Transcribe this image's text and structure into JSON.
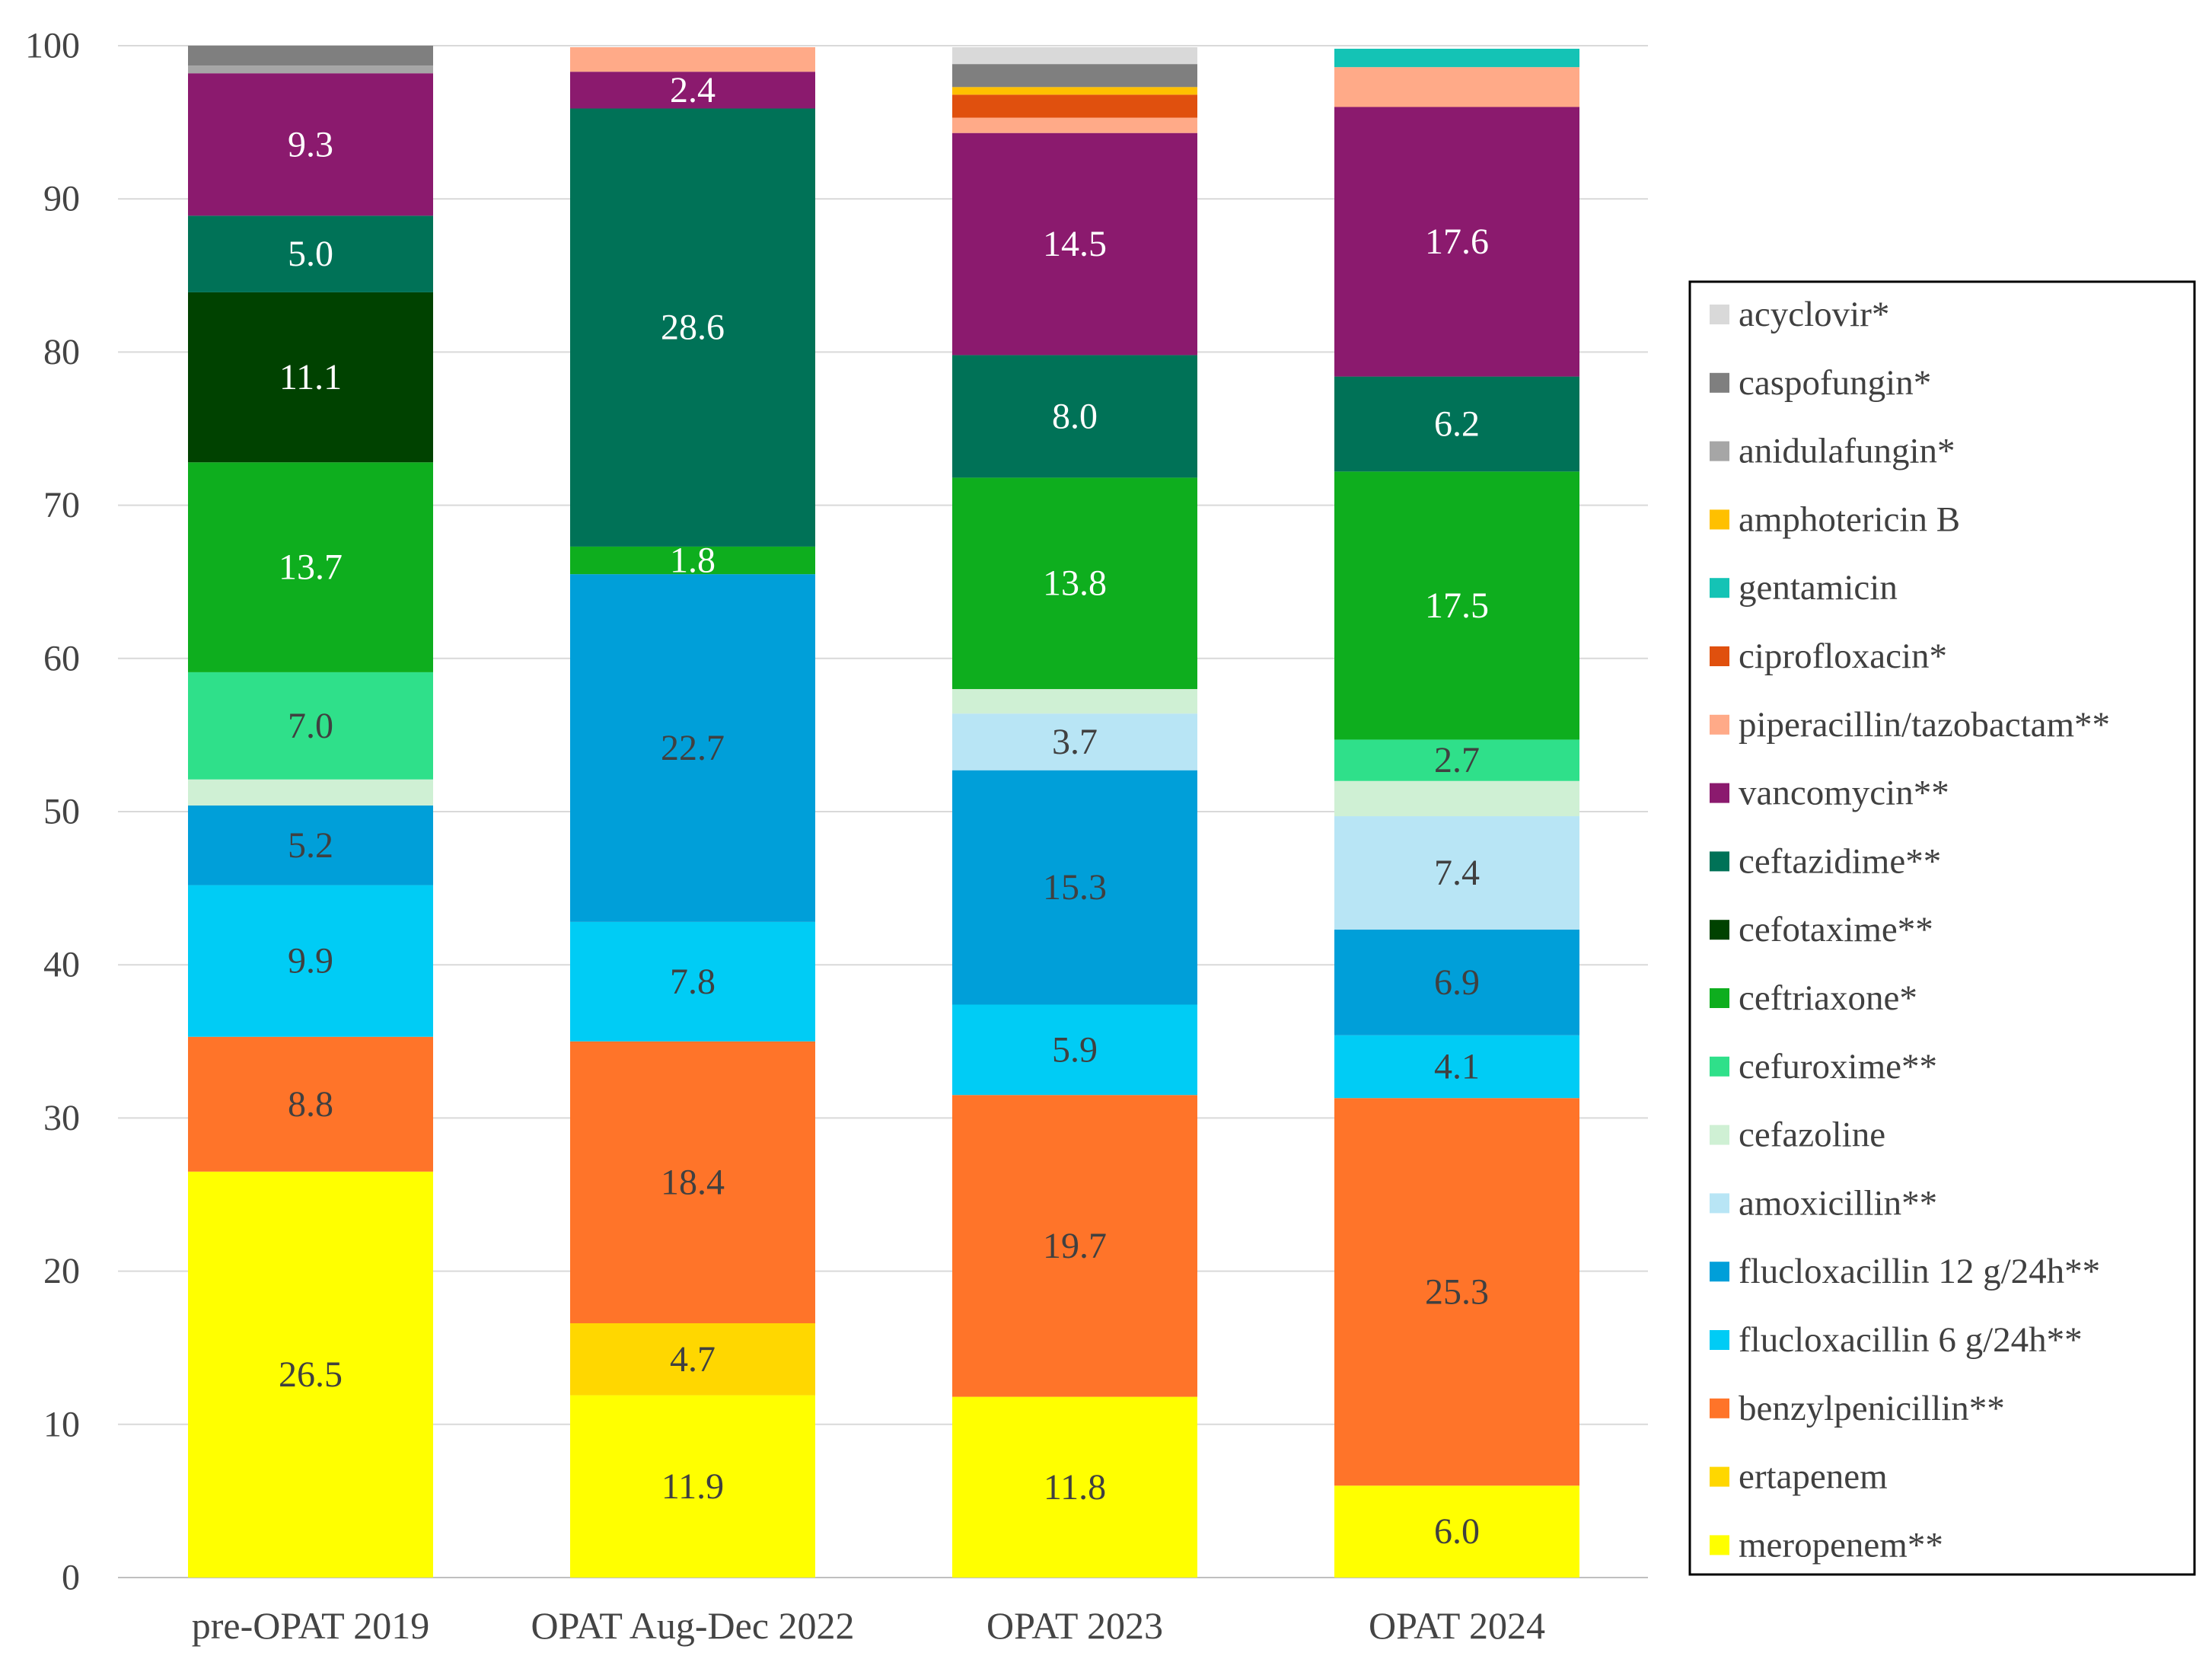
{
  "chart_data": {
    "type": "bar",
    "stacked": true,
    "title": "",
    "xlabel": "",
    "ylabel": "",
    "ylim": [
      0,
      100
    ],
    "yticks": [
      0,
      10,
      20,
      30,
      40,
      50,
      60,
      70,
      80,
      90,
      100
    ],
    "grid": true,
    "legend_position": "right",
    "categories": [
      "pre-OPAT 2019",
      "OPAT Aug-Dec 2022",
      "OPAT 2023",
      "OPAT 2024"
    ],
    "series": [
      {
        "name": "meropenem**",
        "color": "#FFFF00",
        "label_color": "#404040",
        "values": [
          26.5,
          11.9,
          11.8,
          6.0
        ],
        "labels": [
          "26.5",
          "11.9",
          "11.8",
          "6.0"
        ]
      },
      {
        "name": "ertapenem",
        "color": "#FFD700",
        "label_color": "#404040",
        "values": [
          0,
          4.7,
          0,
          0
        ],
        "labels": [
          "",
          "4.7",
          "",
          ""
        ]
      },
      {
        "name": "benzylpenicillin**",
        "color": "#FF7429",
        "label_color": "#404040",
        "values": [
          8.8,
          18.4,
          19.7,
          25.3
        ],
        "labels": [
          "8.8",
          "18.4",
          "19.7",
          "25.3"
        ]
      },
      {
        "name": "flucloxacillin 6 g/24h**",
        "color": "#00CCF5",
        "label_color": "#404040",
        "values": [
          9.9,
          7.8,
          5.9,
          4.1
        ],
        "labels": [
          "9.9",
          "7.8",
          "5.9",
          "4.1"
        ]
      },
      {
        "name": "flucloxacillin 12 g/24h**",
        "color": "#009FD9",
        "label_color": "#404040",
        "values": [
          5.2,
          22.7,
          15.3,
          6.9
        ],
        "labels": [
          "5.2",
          "22.7",
          "15.3",
          "6.9"
        ]
      },
      {
        "name": "amoxicillin**",
        "color": "#B8E5F5",
        "label_color": "#404040",
        "values": [
          0,
          0,
          3.7,
          7.4
        ],
        "labels": [
          "",
          "",
          "3.7",
          "7.4"
        ]
      },
      {
        "name": "cefazoline",
        "color": "#CFF0D4",
        "label_color": "#404040",
        "values": [
          1.7,
          0,
          1.6,
          2.3
        ],
        "labels": [
          "",
          "",
          "",
          ""
        ]
      },
      {
        "name": "cefuroxime**",
        "color": "#2FE08A",
        "label_color": "#404040",
        "values": [
          7.0,
          0,
          0,
          2.7
        ],
        "labels": [
          "7.0",
          "",
          "",
          "2.7"
        ]
      },
      {
        "name": "ceftriaxone*",
        "color": "#0EAE1E",
        "label_color": "#FFFFFF",
        "values": [
          13.7,
          1.8,
          13.8,
          17.5
        ],
        "labels": [
          "13.7",
          "1.8",
          "13.8",
          "17.5"
        ]
      },
      {
        "name": "cefotaxime**",
        "color": "#004200",
        "label_color": "#FFFFFF",
        "values": [
          11.1,
          0,
          0,
          0
        ],
        "labels": [
          "11.1",
          "",
          "",
          ""
        ]
      },
      {
        "name": "ceftazidime**",
        "color": "#007257",
        "label_color": "#FFFFFF",
        "values": [
          5.0,
          28.6,
          8.0,
          6.2
        ],
        "labels": [
          "5.0",
          "28.6",
          "8.0",
          "6.2"
        ]
      },
      {
        "name": "vancomycin**",
        "color": "#8B1A6E",
        "label_color": "#FFFFFF",
        "values": [
          9.3,
          2.4,
          14.5,
          17.6
        ],
        "labels": [
          "9.3",
          "2.4",
          "14.5",
          "17.6"
        ]
      },
      {
        "name": "piperacillin/tazobactam**",
        "color": "#FFAA88",
        "label_color": "#404040",
        "values": [
          0,
          1.6,
          1.0,
          2.6
        ],
        "labels": [
          "",
          "",
          "",
          ""
        ]
      },
      {
        "name": "ciprofloxacin*",
        "color": "#E0500E",
        "label_color": "#FFFFFF",
        "values": [
          0,
          0,
          1.5,
          0
        ],
        "labels": [
          "",
          "",
          "",
          ""
        ]
      },
      {
        "name": "gentamicin",
        "color": "#14C3B5",
        "label_color": "#404040",
        "values": [
          0,
          0,
          0,
          1.2
        ],
        "labels": [
          "",
          "",
          "",
          ""
        ]
      },
      {
        "name": "amphotericin B",
        "color": "#FFC000",
        "label_color": "#404040",
        "values": [
          0,
          0,
          0.5,
          0
        ],
        "labels": [
          "",
          "",
          "",
          ""
        ]
      },
      {
        "name": "anidulafungin*",
        "color": "#A6A6A6",
        "label_color": "#404040",
        "values": [
          0.5,
          0,
          0,
          0
        ],
        "labels": [
          "",
          "",
          "",
          ""
        ]
      },
      {
        "name": "caspofungin*",
        "color": "#7F7F7F",
        "label_color": "#FFFFFF",
        "values": [
          1.3,
          0,
          1.5,
          0
        ],
        "labels": [
          "",
          "",
          "",
          ""
        ]
      },
      {
        "name": "acyclovir*",
        "color": "#D9D9D9",
        "label_color": "#404040",
        "values": [
          0,
          0,
          1.1,
          0
        ],
        "labels": [
          "",
          "",
          "",
          ""
        ]
      }
    ]
  }
}
